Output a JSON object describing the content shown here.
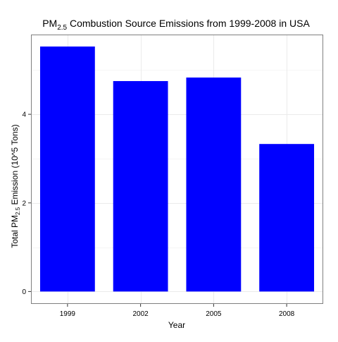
{
  "chart_data": {
    "type": "bar",
    "title": {
      "prefix": "PM",
      "subscript": "2.5",
      "suffix": " Combustion Source Emissions from 1999-2008 in USA"
    },
    "xlabel": "Year",
    "ylabel": {
      "prefix": "Total PM",
      "subscript": "2.5",
      "suffix": " Emission (10^5 Tons)"
    },
    "categories": [
      "1999",
      "2002",
      "2005",
      "2008"
    ],
    "values": [
      5.53,
      4.75,
      4.83,
      3.33
    ],
    "ylim": [
      -0.28,
      5.8
    ],
    "yticks": [
      0,
      2,
      4
    ],
    "grid": true,
    "bar_color": "#0000ff",
    "panel_border_color": "#7f7f7f",
    "grid_color": "#ebebeb"
  }
}
